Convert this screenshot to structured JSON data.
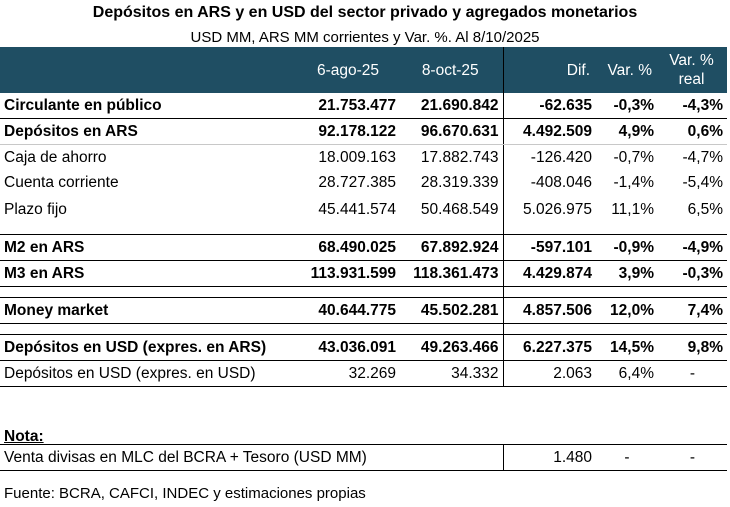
{
  "title": "Depósitos en ARS y en USD del sector privado y agregados monetarios",
  "subtitle": "USD MM, ARS MM corrientes y Var. %. Al 8/10/2025",
  "headers": [
    "",
    "6-ago-25",
    "8-oct-25",
    "Dif.",
    "Var. %",
    "Var. % real"
  ],
  "rows": [
    {
      "label": "Circulante en público",
      "v1": "21.753.477",
      "v2": "21.690.842",
      "dif": "-62.635",
      "var": "-0,3%",
      "real": "-4,3%"
    },
    {
      "label": "Depósitos en ARS",
      "v1": "92.178.122",
      "v2": "96.670.631",
      "dif": "4.492.509",
      "var": "4,9%",
      "real": "0,6%"
    },
    {
      "label": "Caja de ahorro",
      "v1": "18.009.163",
      "v2": "17.882.743",
      "dif": "-126.420",
      "var": "-0,7%",
      "real": "-4,7%"
    },
    {
      "label": "Cuenta corriente",
      "v1": "28.727.385",
      "v2": "28.319.339",
      "dif": "-408.046",
      "var": "-1,4%",
      "real": "-5,4%"
    },
    {
      "label": "Plazo fijo",
      "v1": "45.441.574",
      "v2": "50.468.549",
      "dif": "5.026.975",
      "var": "11,1%",
      "real": "6,5%"
    },
    {
      "label": "M2 en ARS",
      "v1": "68.490.025",
      "v2": "67.892.924",
      "dif": "-597.101",
      "var": "-0,9%",
      "real": "-4,9%"
    },
    {
      "label": "M3 en ARS",
      "v1": "113.931.599",
      "v2": "118.361.473",
      "dif": "4.429.874",
      "var": "3,9%",
      "real": "-0,3%"
    },
    {
      "label": "Money market",
      "v1": "40.644.775",
      "v2": "45.502.281",
      "dif": "4.857.506",
      "var": "12,0%",
      "real": "7,4%"
    },
    {
      "label": "Depósitos en USD (expres. en ARS)",
      "v1": "43.036.091",
      "v2": "49.263.466",
      "dif": "6.227.375",
      "var": "14,5%",
      "real": "9,8%"
    },
    {
      "label": "Depósitos en USD (expres. en USD)",
      "v1": "32.269",
      "v2": "34.332",
      "dif": "2.063",
      "var": "6,4%",
      "real": "-"
    }
  ],
  "nota": {
    "title": "Nota:",
    "label": "Venta divisas en MLC del BCRA + Tesoro (USD MM)",
    "dif": "1.480",
    "var": "-",
    "real": "-"
  },
  "source": "Fuente: BCRA, CAFCI, INDEC y estimaciones propias"
}
